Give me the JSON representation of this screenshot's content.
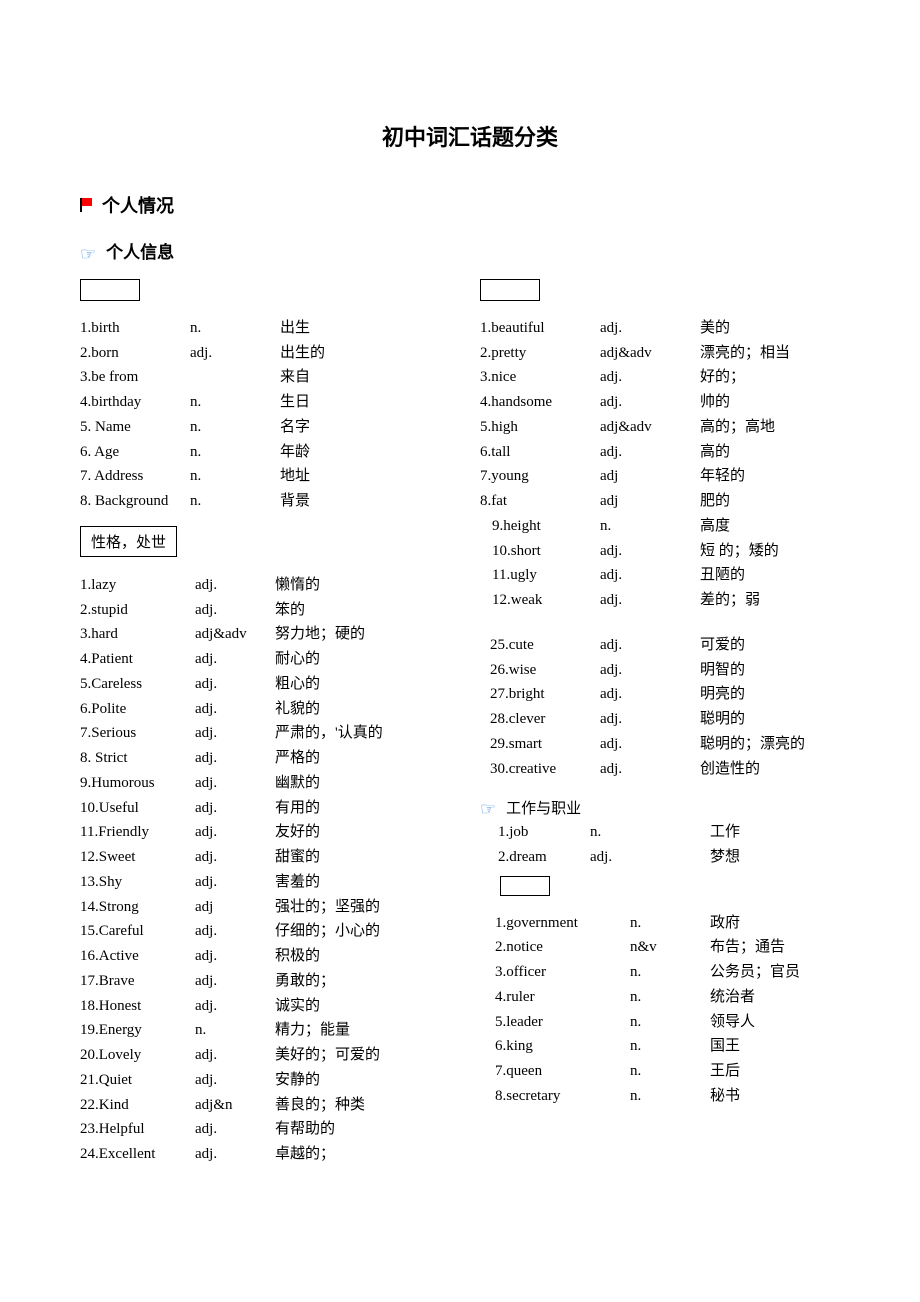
{
  "title": "初中词汇话题分类",
  "section1": {
    "heading": "个人情况",
    "sub1": "个人信息",
    "boxedLabel": "性格，处世",
    "jobHeading": "工作与职业"
  },
  "leftBasic": [
    {
      "n": "1.",
      "w": "birth",
      "p": "n.",
      "d": "出生"
    },
    {
      "n": "2.",
      "w": "born",
      "p": "adj.",
      "d": "出生的"
    },
    {
      "n": "3.",
      "w": "be from",
      "p": "",
      "d": "来自"
    },
    {
      "n": "4.",
      "w": "birthday",
      "p": "n.",
      "d": "生日"
    },
    {
      "n": "5.",
      "w": " Name",
      "p": "n.",
      "d": "名字"
    },
    {
      "n": "6.",
      "w": " Age",
      "p": "n.",
      "d": "年龄"
    },
    {
      "n": "7.",
      "w": " Address",
      "p": "n.",
      "d": "地址"
    },
    {
      "n": "8.",
      "w": " Background",
      "p": "n.",
      "d": "背景"
    }
  ],
  "personality": [
    {
      "n": "1.",
      "w": "lazy",
      "p": "adj.",
      "d": "懒惰的"
    },
    {
      "n": "2.",
      "w": "stupid",
      "p": "adj.",
      "d": "笨的"
    },
    {
      "n": "3.",
      "w": "hard",
      "p": "adj&adv",
      "d": "努力地；硬的"
    },
    {
      "n": "4.",
      "w": "Patient",
      "p": "adj.",
      "d": "耐心的"
    },
    {
      "n": "5.",
      "w": "Careless",
      "p": "adj.",
      "d": "粗心的"
    },
    {
      "n": "6.",
      "w": "Polite",
      "p": "adj.",
      "d": "礼貌的"
    },
    {
      "n": "7.",
      "w": "Serious",
      "p": "adj.",
      "d": "严肃的，'认真的"
    },
    {
      "n": "8.",
      "w": " Strict",
      "p": "adj.",
      "d": " 严格的"
    },
    {
      "n": "9.",
      "w": "Humorous",
      "p": "adj.",
      "d": "幽默的"
    },
    {
      "n": "10.",
      "w": "Useful",
      "p": "adj.",
      "d": "有用的"
    },
    {
      "n": "11.",
      "w": "Friendly",
      "p": "adj.",
      "d": "友好的"
    },
    {
      "n": "12.",
      "w": "Sweet",
      "p": "adj.",
      "d": "甜蜜的"
    },
    {
      "n": "13.",
      "w": "Shy",
      "p": "adj.",
      "d": "害羞的"
    },
    {
      "n": "14.",
      "w": "Strong",
      "p": "adj",
      "d": "强壮的；坚强的"
    },
    {
      "n": "15.",
      "w": "Careful",
      "p": "adj.",
      "d": "仔细的；小心的"
    },
    {
      "n": "16.",
      "w": "Active",
      "p": "adj.",
      "d": "积极的"
    },
    {
      "n": "17.",
      "w": "Brave",
      "p": "adj.",
      "d": "勇敢的；"
    },
    {
      "n": "18.",
      "w": "Honest",
      "p": "adj.",
      "d": "诚实的"
    },
    {
      "n": "19.",
      "w": "Energy",
      "p": "n.",
      "d": "精力；能量"
    },
    {
      "n": "20.",
      "w": "Lovely",
      "p": "adj.",
      "d": " 美好的；可爱的"
    },
    {
      "n": "21.",
      "w": "Quiet",
      "p": "adj.",
      "d": "安静的"
    },
    {
      "n": "22.",
      "w": "Kind",
      "p": "adj&n",
      "d": " 善良的；种类"
    },
    {
      "n": "23.",
      "w": "Helpful",
      "p": "adj.",
      "d": " 有帮助的"
    },
    {
      "n": "24.",
      "w": "Excellent",
      "p": "adj.",
      "d": "  卓越的；"
    }
  ],
  "appearance": [
    {
      "n": "1.",
      "w": "beautiful",
      "p": "adj.",
      "d": "美的"
    },
    {
      "n": "2.",
      "w": "pretty",
      "p": "adj&adv",
      "d": "漂亮的；相当"
    },
    {
      "n": "3.",
      "w": "nice",
      "p": "adj.",
      "d": "好的；"
    },
    {
      "n": "4.",
      "w": "handsome",
      "p": "adj.",
      "d": "帅的"
    },
    {
      "n": "5.",
      "w": "high",
      "p": "adj&adv",
      "d": "高的；高地"
    },
    {
      "n": "6.",
      "w": "tall",
      "p": "adj.",
      "d": "高的"
    },
    {
      "n": "7.",
      "w": "young",
      "p": "adj",
      "d": "年轻的"
    },
    {
      "n": "8.",
      "w": "fat",
      "p": "adj",
      "d": "肥的"
    },
    {
      "n": "9.",
      "w": "height",
      "p": "n.",
      "d": "高度"
    },
    {
      "n": "10.",
      "w": "short",
      "p": "adj.",
      "d": "短 的；矮的"
    },
    {
      "n": "11.",
      "w": "ugly",
      "p": "adj.",
      "d": "丑陋的"
    },
    {
      "n": "12.",
      "w": "weak",
      "p": "adj.",
      "d": "差的；弱"
    }
  ],
  "personality2": [
    {
      "n": "25.",
      "w": "cute",
      "p": "adj.",
      "d": "可爱的"
    },
    {
      "n": "26.",
      "w": "wise",
      "p": "adj.",
      "d": "明智的"
    },
    {
      "n": "27.",
      "w": "bright",
      "p": "adj.",
      "d": "明亮的"
    },
    {
      "n": "28.",
      "w": "clever",
      "p": "adj.",
      "d": "聪明的"
    },
    {
      "n": "29.",
      "w": "smart",
      "p": "adj.",
      "d": "聪明的；漂亮的"
    },
    {
      "n": "30.",
      "w": "creative",
      "p": "adj.",
      "d": "创造性的"
    }
  ],
  "job": [
    {
      "n": "1.",
      "w": "job",
      "p": "n.",
      "d": "工作"
    },
    {
      "n": "2.",
      "w": "dream",
      "p": "adj.",
      "d": " 梦想"
    }
  ],
  "gov": [
    {
      "n": "1.",
      "w": "government",
      "p": "n.",
      "d": "政府"
    },
    {
      "n": "2.",
      "w": "notice",
      "p": "n&v",
      "d": "布告；通告"
    },
    {
      "n": "3.",
      "w": "officer",
      "p": "n.",
      "d": "公务员；官员"
    },
    {
      "n": "4.",
      "w": "ruler",
      "p": "n.",
      "d": "统治者"
    },
    {
      "n": "5.",
      "w": "leader",
      "p": "n.",
      "d": "领导人"
    },
    {
      "n": "6.",
      "w": "king",
      "p": "n.",
      "d": "国王"
    },
    {
      "n": "7.",
      "w": "queen",
      "p": "n.",
      "d": "王后"
    },
    {
      "n": "8.",
      "w": "secretary",
      "p": "n.",
      "d": " 秘书"
    }
  ]
}
